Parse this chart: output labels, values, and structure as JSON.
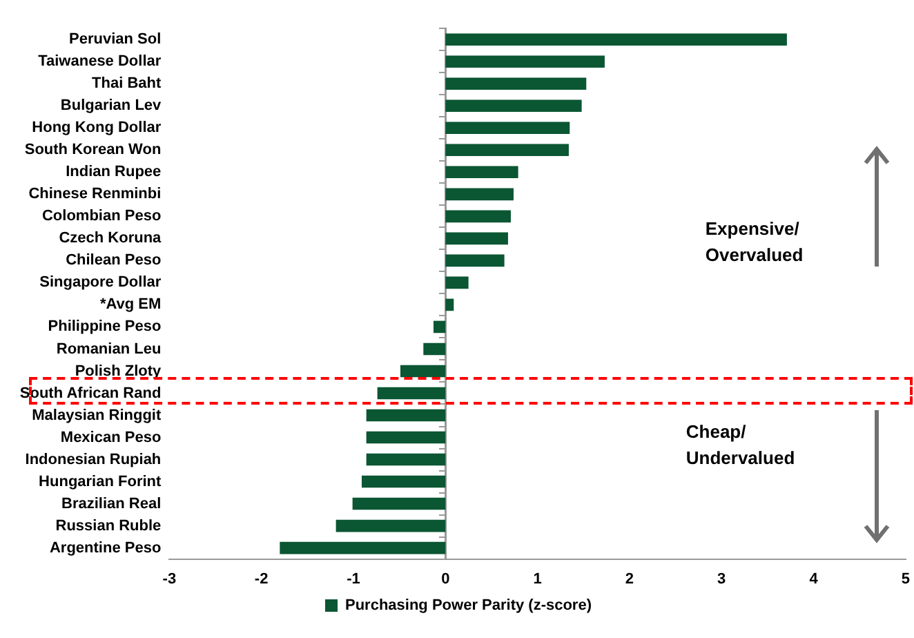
{
  "chart_data": {
    "type": "bar",
    "orientation": "horizontal",
    "categories": [
      "Peruvian Sol",
      "Taiwanese Dollar",
      "Thai Baht",
      "Bulgarian Lev",
      "Hong Kong Dollar",
      "South Korean Won",
      "Indian Rupee",
      "Chinese Renminbi",
      "Colombian Peso",
      "Czech Koruna",
      "Chilean Peso",
      "Singapore Dollar",
      "*Avg EM",
      "Philippine Peso",
      "Romanian Leu",
      "Polish Zloty",
      "South African Rand",
      "Malaysian Ringgit",
      "Mexican Peso",
      "Indonesian Rupiah",
      "Hungarian Forint",
      "Brazilian Real",
      "Russian Ruble",
      "Argentine Peso"
    ],
    "series": [
      {
        "name": "Purchasing Power Parity (z-score)",
        "color": "#0b5633",
        "values": [
          3.71,
          1.73,
          1.53,
          1.48,
          1.35,
          1.34,
          0.79,
          0.74,
          0.71,
          0.68,
          0.64,
          0.25,
          0.09,
          -0.13,
          -0.24,
          -0.49,
          -0.74,
          -0.86,
          -0.86,
          -0.86,
          -0.91,
          -1.01,
          -1.19,
          -1.8
        ]
      }
    ],
    "xlim": [
      -3,
      5
    ],
    "xticks": [
      -3,
      -2,
      -1,
      0,
      1,
      2,
      3,
      4,
      5
    ],
    "legend": "bottom",
    "annotations": [
      "Expensive/\nOvervalued",
      "Cheap/\nUndervalued"
    ]
  }
}
